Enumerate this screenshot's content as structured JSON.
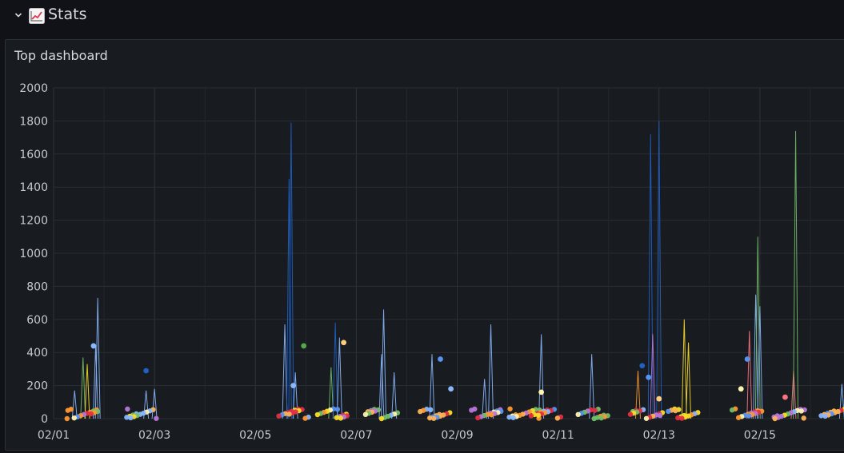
{
  "row": {
    "title": "Stats",
    "icon": "chart-increasing-emoji-icon",
    "collapse_icon": "chevron-down-icon"
  },
  "panel": {
    "title": "Top dashboard"
  },
  "chart_data": {
    "type": "line",
    "title": "Top dashboard",
    "xlabel": "",
    "ylabel": "",
    "ylim": [
      0,
      2000
    ],
    "y_ticks": [
      0,
      200,
      400,
      600,
      800,
      1000,
      1200,
      1400,
      1600,
      1800,
      2000
    ],
    "x_range": [
      "2022-02-01",
      "2022-02-16T16:00"
    ],
    "x_ticks": [
      {
        "date": "2022-02-01",
        "label": "02/01"
      },
      {
        "date": "2022-02-03",
        "label": "02/03"
      },
      {
        "date": "2022-02-05",
        "label": "02/05"
      },
      {
        "date": "2022-02-07",
        "label": "02/07"
      },
      {
        "date": "2022-02-09",
        "label": "02/09"
      },
      {
        "date": "2022-02-11",
        "label": "02/11"
      },
      {
        "date": "2022-02-13",
        "label": "02/13"
      },
      {
        "date": "2022-02-15",
        "label": "02/15"
      }
    ],
    "grid": true,
    "legend": "none",
    "spikes": [
      {
        "x": "2022-02-01T10:00",
        "y": 170,
        "color": "#8ab8ff"
      },
      {
        "x": "2022-02-01T14:00",
        "y": 370,
        "color": "#73bf69"
      },
      {
        "x": "2022-02-01T16:00",
        "y": 330,
        "color": "#fade2a"
      },
      {
        "x": "2022-02-01T20:00",
        "y": 440,
        "color": "#8ab8ff"
      },
      {
        "x": "2022-02-01T21:00",
        "y": 730,
        "color": "#8ab8ff"
      },
      {
        "x": "2022-02-02T20:00",
        "y": 170,
        "color": "#8ab8ff"
      },
      {
        "x": "2022-02-03T00:00",
        "y": 180,
        "color": "#8ab8ff"
      },
      {
        "x": "2022-02-05T14:00",
        "y": 570,
        "color": "#8ab8ff"
      },
      {
        "x": "2022-02-05T16:00",
        "y": 1450,
        "color": "#1f60c4"
      },
      {
        "x": "2022-02-05T17:00",
        "y": 1790,
        "color": "#1f60c4"
      },
      {
        "x": "2022-02-05T19:00",
        "y": 280,
        "color": "#8ab8ff"
      },
      {
        "x": "2022-02-06T12:00",
        "y": 310,
        "color": "#73bf69"
      },
      {
        "x": "2022-02-06T14:00",
        "y": 580,
        "color": "#1f60c4"
      },
      {
        "x": "2022-02-06T16:00",
        "y": 490,
        "color": "#8ab8ff"
      },
      {
        "x": "2022-02-07T12:00",
        "y": 390,
        "color": "#8ab8ff"
      },
      {
        "x": "2022-02-07T13:00",
        "y": 660,
        "color": "#8ab8ff"
      },
      {
        "x": "2022-02-07T18:00",
        "y": 280,
        "color": "#8ab8ff"
      },
      {
        "x": "2022-02-08T12:00",
        "y": 390,
        "color": "#8ab8ff"
      },
      {
        "x": "2022-02-09T13:00",
        "y": 240,
        "color": "#8ab8ff"
      },
      {
        "x": "2022-02-09T16:00",
        "y": 570,
        "color": "#8ab8ff"
      },
      {
        "x": "2022-02-10T16:00",
        "y": 510,
        "color": "#8ab8ff"
      },
      {
        "x": "2022-02-11T16:00",
        "y": 390,
        "color": "#8ab8ff"
      },
      {
        "x": "2022-02-12T14:00",
        "y": 290,
        "color": "#ff9830"
      },
      {
        "x": "2022-02-12T20:00",
        "y": 1720,
        "color": "#1f60c4"
      },
      {
        "x": "2022-02-12T21:00",
        "y": 510,
        "color": "#b877d9"
      },
      {
        "x": "2022-02-13T00:00",
        "y": 1800,
        "color": "#1f60c4"
      },
      {
        "x": "2022-02-13T12:00",
        "y": 600,
        "color": "#fade2a"
      },
      {
        "x": "2022-02-13T14:00",
        "y": 460,
        "color": "#fade2a"
      },
      {
        "x": "2022-02-14T19:00",
        "y": 530,
        "color": "#ff7383"
      },
      {
        "x": "2022-02-14T22:00",
        "y": 750,
        "color": "#8ab8ff"
      },
      {
        "x": "2022-02-14T23:00",
        "y": 1100,
        "color": "#73bf69"
      },
      {
        "x": "2022-02-15T00:00",
        "y": 680,
        "color": "#8ab8ff"
      },
      {
        "x": "2022-02-15T16:00",
        "y": 290,
        "color": "#ff7383"
      },
      {
        "x": "2022-02-15T17:00",
        "y": 1740,
        "color": "#73bf69"
      },
      {
        "x": "2022-02-16T15:00",
        "y": 210,
        "color": "#8ab8ff"
      }
    ],
    "points": [
      {
        "x": "2022-02-01T19:00",
        "y": 440,
        "color": "#8ab8ff"
      },
      {
        "x": "2022-02-02T20:00",
        "y": 290,
        "color": "#1f60c4"
      },
      {
        "x": "2022-02-05T18:00",
        "y": 200,
        "color": "#8ab8ff"
      },
      {
        "x": "2022-02-05T23:00",
        "y": 440,
        "color": "#56a64b"
      },
      {
        "x": "2022-02-06T18:00",
        "y": 460,
        "color": "#ffcb7d"
      },
      {
        "x": "2022-02-08T16:00",
        "y": 360,
        "color": "#5794f2"
      },
      {
        "x": "2022-02-08T21:00",
        "y": 180,
        "color": "#8ab8ff"
      },
      {
        "x": "2022-02-10T16:00",
        "y": 160,
        "color": "#fff4b0"
      },
      {
        "x": "2022-02-12T16:00",
        "y": 320,
        "color": "#1f60c4"
      },
      {
        "x": "2022-02-12T19:00",
        "y": 250,
        "color": "#5794f2"
      },
      {
        "x": "2022-02-13T00:00",
        "y": 120,
        "color": "#ffcb7d"
      },
      {
        "x": "2022-02-14T15:00",
        "y": 180,
        "color": "#fff4b0"
      },
      {
        "x": "2022-02-14T18:00",
        "y": 360,
        "color": "#5794f2"
      },
      {
        "x": "2022-02-15T12:00",
        "y": 130,
        "color": "#ff7383"
      }
    ],
    "base_clusters": [
      {
        "x": "2022-02-01T14:00",
        "y": 0,
        "color": "#ff9830"
      },
      {
        "x": "2022-02-02T18:00",
        "y": 0,
        "color": "#8ab8ff"
      },
      {
        "x": "2022-02-05T18:00",
        "y": 0,
        "color": "#e02f44"
      },
      {
        "x": "2022-02-06T12:00",
        "y": 0,
        "color": "#fade2a"
      },
      {
        "x": "2022-02-07T12:00",
        "y": 0,
        "color": "#73bf69"
      },
      {
        "x": "2022-02-08T14:00",
        "y": 0,
        "color": "#ffb357"
      },
      {
        "x": "2022-02-09T14:00",
        "y": 0,
        "color": "#b877d9"
      },
      {
        "x": "2022-02-10T08:00",
        "y": 0,
        "color": "#ff9830"
      },
      {
        "x": "2022-02-10T18:00",
        "y": 0,
        "color": "#e02f44"
      },
      {
        "x": "2022-02-11T16:00",
        "y": 0,
        "color": "#73bf69"
      },
      {
        "x": "2022-02-12T18:00",
        "y": 0,
        "color": "#e02f44"
      },
      {
        "x": "2022-02-13T12:00",
        "y": 0,
        "color": "#fade2a"
      },
      {
        "x": "2022-02-14T18:00",
        "y": 0,
        "color": "#ff9830"
      },
      {
        "x": "2022-02-15T14:00",
        "y": 0,
        "color": "#b877d9"
      },
      {
        "x": "2022-02-16T12:00",
        "y": 0,
        "color": "#ffb357"
      }
    ]
  }
}
